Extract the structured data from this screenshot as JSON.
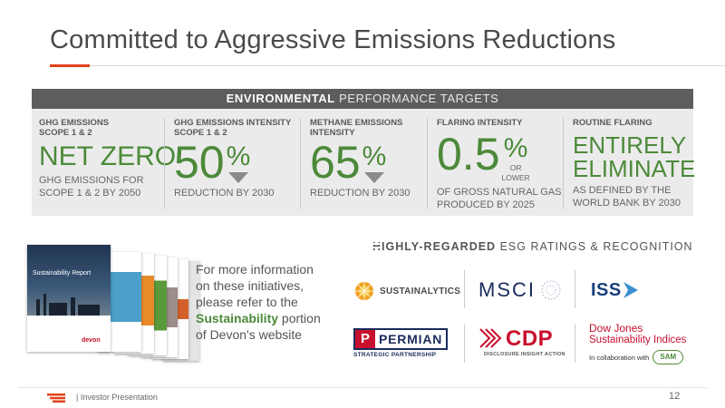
{
  "slide": {
    "title": "Committed to Aggressive Emissions Reductions"
  },
  "environmental": {
    "header_bold": "ENVIRONMENTAL",
    "header_light": "PERFORMANCE TARGETS",
    "metrics": [
      {
        "label": "GHG EMISSIONS",
        "label2": "SCOPE 1 & 2",
        "big": "NET ZERO",
        "sub": "GHG EMISSIONS FOR",
        "sub2": "SCOPE 1 & 2 BY 2050"
      },
      {
        "label": "GHG EMISSIONS INTENSITY",
        "label2": "SCOPE 1 & 2",
        "big": "50",
        "unit": "%",
        "sub": "REDUCTION BY 2030"
      },
      {
        "label": "METHANE EMISSIONS",
        "label2": "INTENSITY",
        "big": "65",
        "unit": "%",
        "sub": "REDUCTION BY 2030"
      },
      {
        "label": "FLARING INTENSITY",
        "big": "0.5",
        "unit": "%",
        "unit_note": "OR",
        "unit_note2": "LOWER",
        "sub": "OF GROSS NATURAL GAS",
        "sub2": "PRODUCED BY 2025"
      },
      {
        "label": "ROUTINE FLARING",
        "big": "ENTIRELY",
        "big2": "ELIMINATE",
        "sub": "AS DEFINED BY THE",
        "sub2": "WORLD BANK BY 2030"
      }
    ]
  },
  "info": {
    "line1": "For more information",
    "line2": "on these initiatives,",
    "line3": "please refer to the",
    "highlight": "Sustainability",
    "line4_rest": " portion",
    "line5": "of Devon's website"
  },
  "report_cover": {
    "title": "Sustainability Report",
    "brand": "devon"
  },
  "esg": {
    "header_bold": "HIGHLY-REGARDED",
    "header_light": "ESG RATINGS & RECOGNITION",
    "logos": {
      "sustainalytics": "SUSTAINALYTICS",
      "msci": "MSCI",
      "iss": "ISS",
      "permian": "PERMIAN",
      "permian_sub": "STRATEGIC PARTNERSHIP",
      "cdp": "CDP",
      "cdp_sub": "DISCLOSURE INSIGHT ACTION",
      "dj1": "Dow Jones",
      "dj2": "Sustainability Indices",
      "dj3": "In collaboration with",
      "sam": "SAM"
    },
    "colors": {
      "green": "#4c8a3a",
      "red": "#c8102e",
      "msci_blue": "#1a2b5c",
      "iss_blue": "#1a3e7a",
      "sus_orange": "#f0a020"
    }
  },
  "footer": {
    "text": "|   Investor Presentation",
    "page": "12"
  }
}
